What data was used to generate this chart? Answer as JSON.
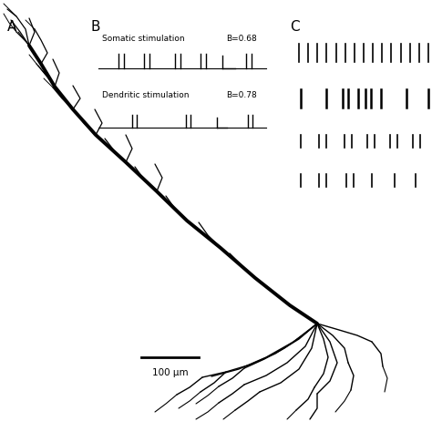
{
  "panel_A_label": "A",
  "panel_B_label": "B",
  "panel_C_label": "C",
  "somatic_label": "Somatic stimulation",
  "somatic_B": "B=0.68",
  "dendritic_label": "Dendritic stimulation",
  "dendritic_B": "B=0.78",
  "scale_bar_label": "100 μm",
  "bg_color": "#ffffff",
  "text_color": "#000000"
}
